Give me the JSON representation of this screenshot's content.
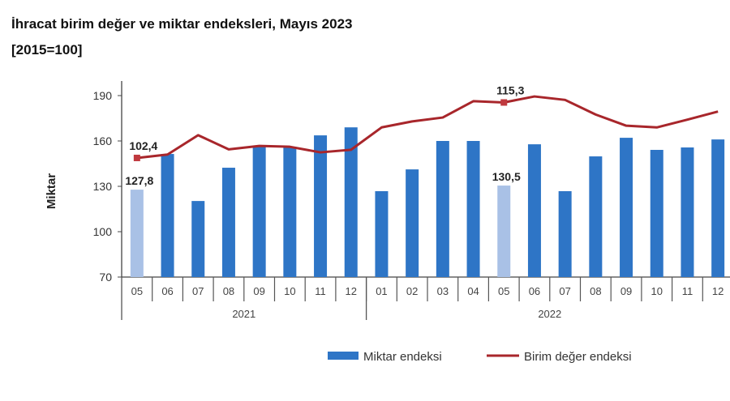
{
  "chart_data": {
    "type": "bar+line",
    "title": "İhracat birim değer ve miktar endeksleri, Mayıs 2023",
    "subtitle": "[2015=100]",
    "ylabel": "Miktar",
    "ylim": [
      70,
      190
    ],
    "yticks": [
      "70",
      "100",
      "130",
      "160",
      "190"
    ],
    "y2lim": [
      74.7,
      116.9
    ],
    "grid": false,
    "legend_position": "bottom",
    "categories": [
      "05",
      "06",
      "07",
      "08",
      "09",
      "10",
      "11",
      "12",
      "01",
      "02",
      "03",
      "04",
      "05",
      "06",
      "07",
      "08",
      "09",
      "10",
      "11",
      "12"
    ],
    "years": [
      {
        "label": "2021",
        "span": 8
      },
      {
        "label": "2022",
        "span": 12
      }
    ],
    "series": [
      {
        "name": "Miktar endeksi",
        "type": "bar",
        "axis": "left",
        "color": "#2E75C6",
        "highlight_color": "#A9C1E6",
        "highlight_indices": [
          0,
          12
        ],
        "values": [
          127.8,
          151.4,
          120.3,
          142.3,
          156.8,
          156.2,
          163.7,
          169.0,
          126.8,
          141.2,
          160.0,
          160.0,
          130.5,
          157.8,
          126.8,
          149.8,
          162.1,
          154.1,
          155.7,
          161.0
        ]
      },
      {
        "name": "Birim değer endeksi",
        "type": "line",
        "axis": "right-hidden",
        "color": "#A8262B",
        "values": [
          102.4,
          103.2,
          107.7,
          104.4,
          105.2,
          105.0,
          103.7,
          104.3,
          109.5,
          110.9,
          111.8,
          115.6,
          115.3,
          116.7,
          115.9,
          112.5,
          109.9,
          109.5,
          111.3,
          113.2
        ]
      }
    ],
    "data_labels": [
      {
        "series": 0,
        "index": 0,
        "text": "127,8"
      },
      {
        "series": 0,
        "index": 12,
        "text": "130,5"
      },
      {
        "series": 1,
        "index": 0,
        "text": "102,4"
      },
      {
        "series": 1,
        "index": 12,
        "text": "115,3"
      }
    ]
  }
}
